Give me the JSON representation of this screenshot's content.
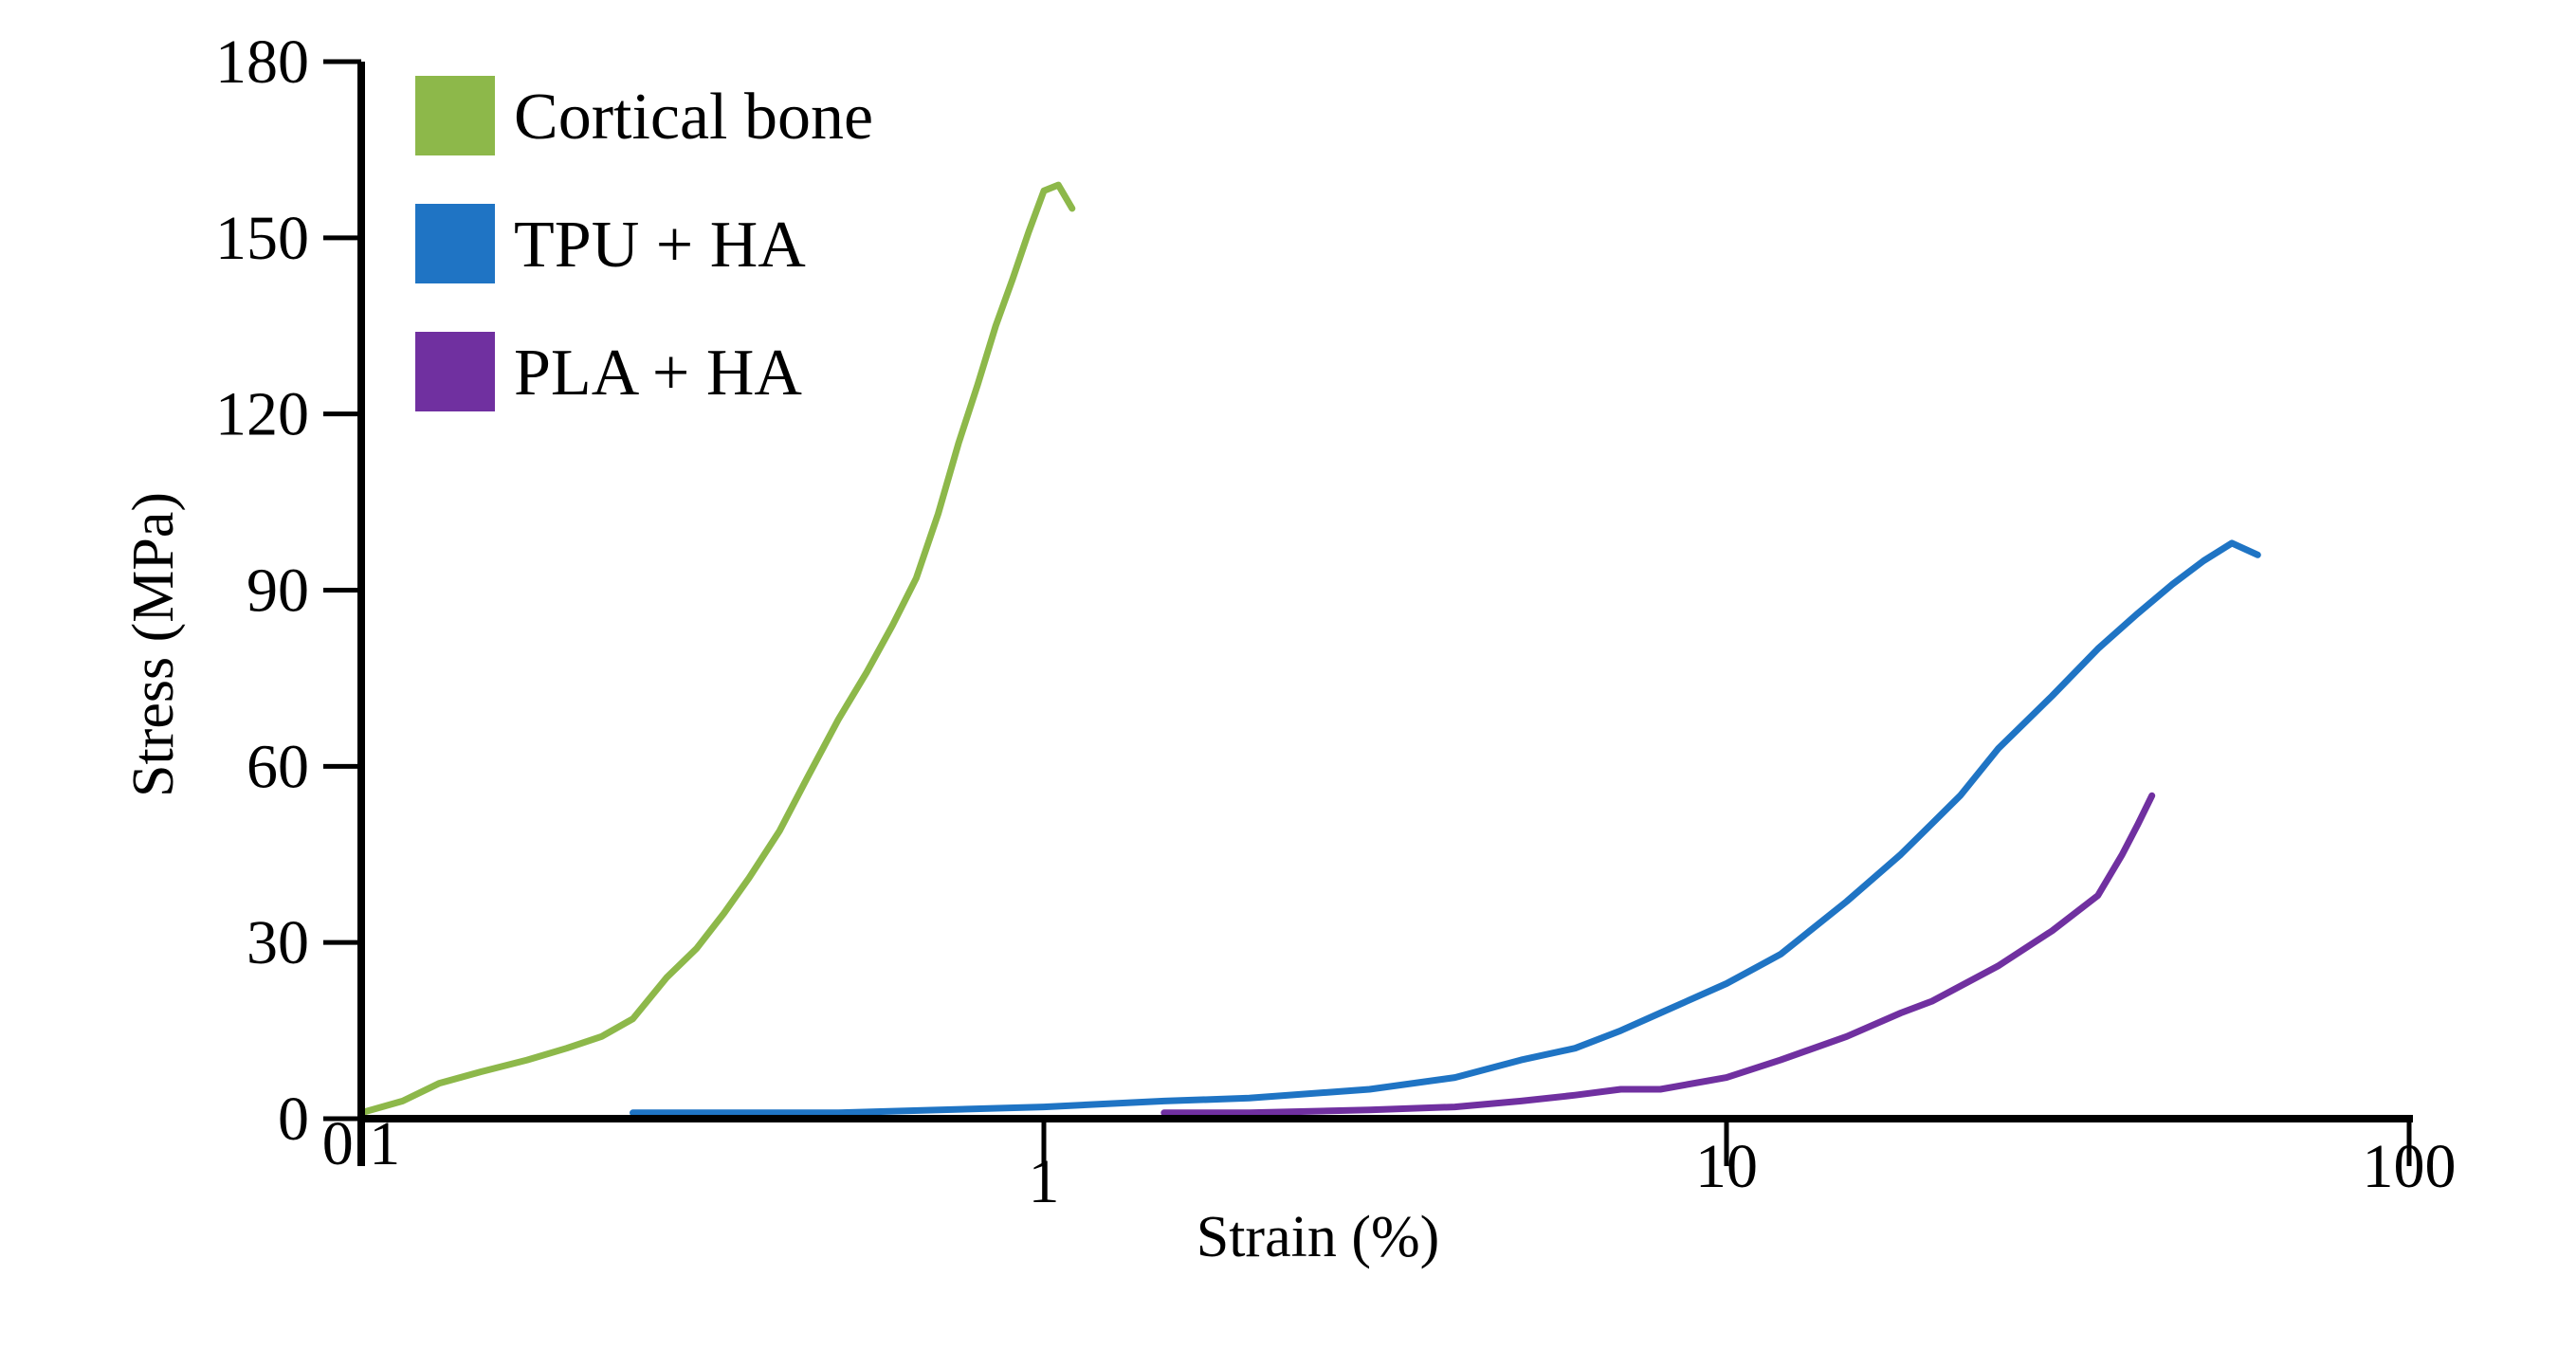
{
  "chart_data": {
    "type": "line",
    "title": "",
    "xlabel": "Strain (%)",
    "ylabel": "Stress (MPa)",
    "xscale": "log",
    "xlim": [
      0.1,
      100
    ],
    "ylim": [
      0,
      180
    ],
    "x_ticks": [
      0.1,
      1,
      10,
      100
    ],
    "x_tick_labels": [
      "0.1",
      "1",
      "10",
      "100"
    ],
    "y_ticks": [
      0,
      30,
      60,
      90,
      120,
      150,
      180
    ],
    "y_tick_labels": [
      "0",
      "30",
      "60",
      "90",
      "120",
      "150",
      "180"
    ],
    "legend_position": "top-left",
    "series": [
      {
        "name": "Cortical bone",
        "color": "#8db84a",
        "x": [
          0.1,
          0.115,
          0.13,
          0.15,
          0.175,
          0.2,
          0.225,
          0.25,
          0.28,
          0.31,
          0.34,
          0.37,
          0.41,
          0.45,
          0.5,
          0.55,
          0.6,
          0.65,
          0.7,
          0.75,
          0.8,
          0.85,
          0.9,
          0.95,
          1.0,
          1.05,
          1.1
        ],
        "y": [
          1,
          3,
          6,
          8,
          10,
          12,
          14,
          17,
          24,
          29,
          35,
          41,
          49,
          58,
          68,
          76,
          84,
          92,
          103,
          115,
          125,
          135,
          143,
          151,
          158,
          159,
          155
        ]
      },
      {
        "name": "TPU + HA",
        "color": "#1f74c4",
        "x": [
          0.25,
          0.5,
          1.0,
          1.5,
          2.0,
          3.0,
          4.0,
          5.0,
          6.0,
          7.0,
          8.0,
          10.0,
          12.0,
          15.0,
          18.0,
          22.0,
          25.0,
          30.0,
          35.0,
          40.0,
          45.0,
          50.0,
          55.0,
          60.0
        ],
        "y": [
          1,
          1,
          2,
          3,
          3.5,
          5,
          7,
          10,
          12,
          15,
          18,
          23,
          28,
          37,
          45,
          55,
          63,
          72,
          80,
          86,
          91,
          95,
          98,
          96
        ]
      },
      {
        "name": "PLA + HA",
        "color": "#7030a0",
        "x": [
          1.5,
          2.0,
          3.0,
          4.0,
          5.0,
          6.0,
          7.0,
          8.0,
          10.0,
          12.0,
          15.0,
          18.0,
          20.0,
          25.0,
          30.0,
          35.0,
          38.0,
          40.0,
          42.0
        ],
        "y": [
          1,
          1,
          1.5,
          2,
          3,
          4,
          5,
          5,
          7,
          10,
          14,
          18,
          20,
          26,
          32,
          38,
          45,
          50,
          55
        ]
      }
    ]
  }
}
